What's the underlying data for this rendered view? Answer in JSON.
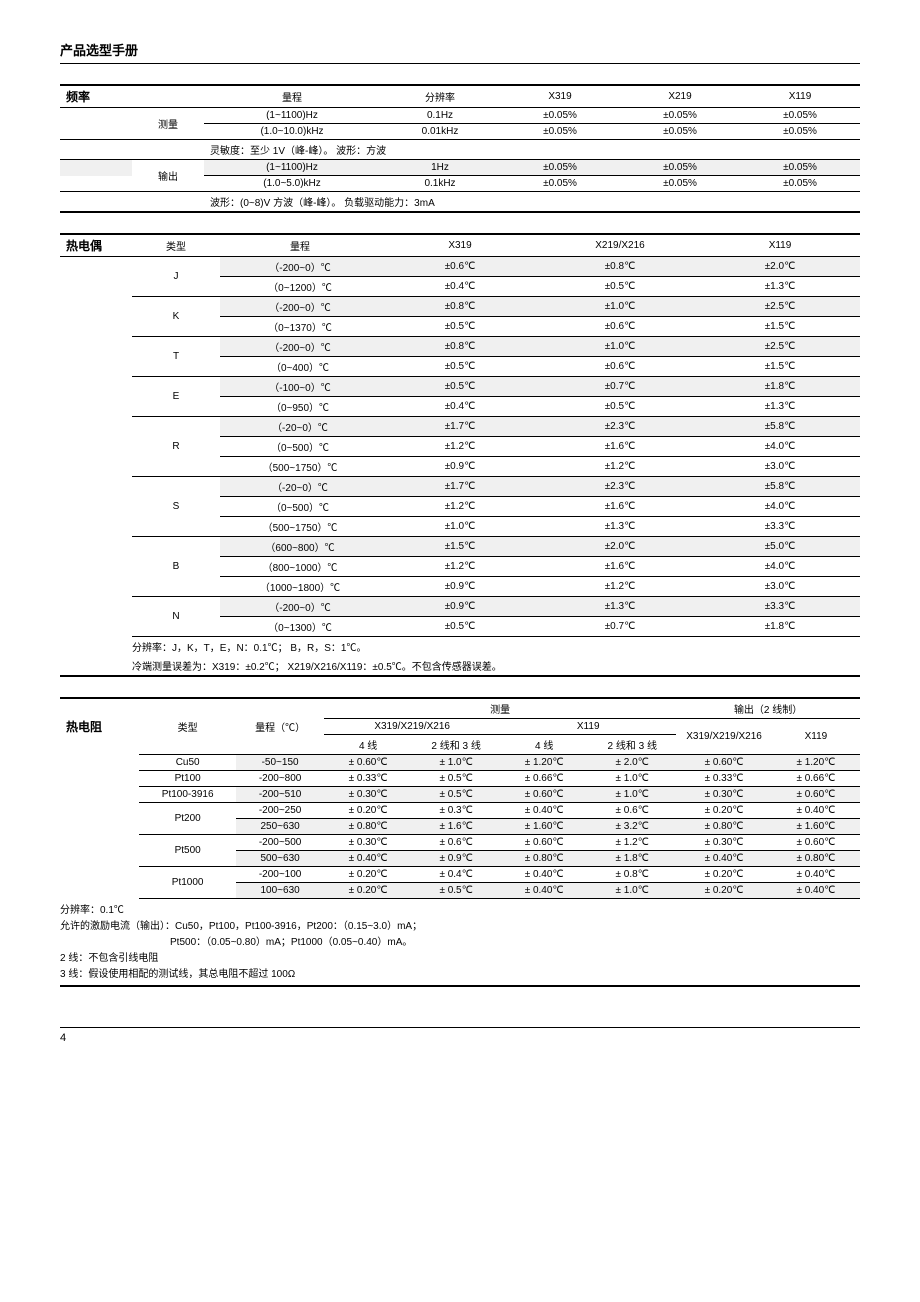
{
  "page_title": "产品选型手册",
  "page_number": "4",
  "freq": {
    "label": "频率",
    "headers": [
      "量程",
      "分辨率",
      "X319",
      "X219",
      "X119"
    ],
    "meas_label": "测量",
    "out_label": "输出",
    "meas_rows": [
      [
        "(1~1100)Hz",
        "0.1Hz",
        "±0.05%",
        "±0.05%",
        "±0.05%"
      ],
      [
        "(1.0~10.0)kHz",
        "0.01kHz",
        "±0.05%",
        "±0.05%",
        "±0.05%"
      ]
    ],
    "meas_note": "灵敏度：至少 1V（峰-峰）。 波形：方波",
    "out_rows": [
      [
        "(1~1100)Hz",
        "1Hz",
        "±0.05%",
        "±0.05%",
        "±0.05%"
      ],
      [
        "(1.0~5.0)kHz",
        "0.1kHz",
        "±0.05%",
        "±0.05%",
        "±0.05%"
      ]
    ],
    "out_note": "波形：(0~8)V 方波（峰-峰）。 负载驱动能力：3mA"
  },
  "tc": {
    "label": "热电偶",
    "headers": [
      "类型",
      "量程",
      "X319",
      "X219/X216",
      "X119"
    ],
    "groups": [
      {
        "type": "J",
        "rows": [
          [
            "（-200~0）℃",
            "±0.6℃",
            "±0.8℃",
            "±2.0℃"
          ],
          [
            "（0~1200）℃",
            "±0.4℃",
            "±0.5℃",
            "±1.3℃"
          ]
        ]
      },
      {
        "type": "K",
        "rows": [
          [
            "（-200~0）℃",
            "±0.8℃",
            "±1.0℃",
            "±2.5℃"
          ],
          [
            "（0~1370）℃",
            "±0.5℃",
            "±0.6℃",
            "±1.5℃"
          ]
        ]
      },
      {
        "type": "T",
        "rows": [
          [
            "（-200~0）℃",
            "±0.8℃",
            "±1.0℃",
            "±2.5℃"
          ],
          [
            "（0~400）℃",
            "±0.5℃",
            "±0.6℃",
            "±1.5℃"
          ]
        ]
      },
      {
        "type": "E",
        "rows": [
          [
            "（-100~0）℃",
            "±0.5℃",
            "±0.7℃",
            "±1.8℃"
          ],
          [
            "（0~950）℃",
            "±0.4℃",
            "±0.5℃",
            "±1.3℃"
          ]
        ]
      },
      {
        "type": "R",
        "rows": [
          [
            "（-20~0）℃",
            "±1.7℃",
            "±2.3℃",
            "±5.8℃"
          ],
          [
            "（0~500）℃",
            "±1.2℃",
            "±1.6℃",
            "±4.0℃"
          ],
          [
            "（500~1750）℃",
            "±0.9℃",
            "±1.2℃",
            "±3.0℃"
          ]
        ]
      },
      {
        "type": "S",
        "rows": [
          [
            "（-20~0）℃",
            "±1.7℃",
            "±2.3℃",
            "±5.8℃"
          ],
          [
            "（0~500）℃",
            "±1.2℃",
            "±1.6℃",
            "±4.0℃"
          ],
          [
            "（500~1750）℃",
            "±1.0℃",
            "±1.3℃",
            "±3.3℃"
          ]
        ]
      },
      {
        "type": "B",
        "rows": [
          [
            "（600~800）℃",
            "±1.5℃",
            "±2.0℃",
            "±5.0℃"
          ],
          [
            "（800~1000）℃",
            "±1.2℃",
            "±1.6℃",
            "±4.0℃"
          ],
          [
            "（1000~1800）℃",
            "±0.9℃",
            "±1.2℃",
            "±3.0℃"
          ]
        ]
      },
      {
        "type": "N",
        "rows": [
          [
            "（-200~0）℃",
            "±0.9℃",
            "±1.3℃",
            "±3.3℃"
          ],
          [
            "（0~1300）℃",
            "±0.5℃",
            "±0.7℃",
            "±1.8℃"
          ]
        ]
      }
    ],
    "note1": "分辨率：J，K，T，E，N：0.1℃； B，R，S：1℃。",
    "note2": "冷端测量误差为：X319：±0.2℃； X219/X216/X119：±0.5℃。不包含传感器误差。"
  },
  "rtd": {
    "label": "热电阻",
    "top_headers": {
      "meas": "测量",
      "out": "输出（2 线制）"
    },
    "sub_headers": {
      "type": "类型",
      "range": "量程（℃）",
      "g1": "X319/X219/X216",
      "g2": "X119",
      "o1": "X319/X219/X216",
      "o2": "X119"
    },
    "wire_headers": {
      "w4": "4 线",
      "w23": "2 线和 3 线"
    },
    "rows": [
      {
        "type": "Cu50",
        "sub": [
          [
            "-50~150",
            "± 0.60℃",
            "± 1.0℃",
            "± 1.20℃",
            "± 2.0℃",
            "± 0.60℃",
            "± 1.20℃"
          ]
        ]
      },
      {
        "type": "Pt100",
        "sub": [
          [
            "-200~800",
            "± 0.33℃",
            "± 0.5℃",
            "± 0.66℃",
            "± 1.0℃",
            "± 0.33℃",
            "± 0.66℃"
          ]
        ]
      },
      {
        "type": "Pt100-3916",
        "sub": [
          [
            "-200~510",
            "± 0.30℃",
            "± 0.5℃",
            "± 0.60℃",
            "± 1.0℃",
            "± 0.30℃",
            "± 0.60℃"
          ]
        ]
      },
      {
        "type": "Pt200",
        "sub": [
          [
            "-200~250",
            "± 0.20℃",
            "± 0.3℃",
            "± 0.40℃",
            "± 0.6℃",
            "± 0.20℃",
            "± 0.40℃"
          ],
          [
            "250~630",
            "± 0.80℃",
            "± 1.6℃",
            "± 1.60℃",
            "± 3.2℃",
            "± 0.80℃",
            "± 1.60℃"
          ]
        ]
      },
      {
        "type": "Pt500",
        "sub": [
          [
            "-200~500",
            "± 0.30℃",
            "± 0.6℃",
            "± 0.60℃",
            "± 1.2℃",
            "± 0.30℃",
            "± 0.60℃"
          ],
          [
            "500~630",
            "± 0.40℃",
            "± 0.9℃",
            "± 0.80℃",
            "± 1.8℃",
            "± 0.40℃",
            "± 0.80℃"
          ]
        ]
      },
      {
        "type": "Pt1000",
        "sub": [
          [
            "-200~100",
            "± 0.20℃",
            "± 0.4℃",
            "± 0.40℃",
            "± 0.8℃",
            "± 0.20℃",
            "± 0.40℃"
          ],
          [
            "100~630",
            "± 0.20℃",
            "± 0.5℃",
            "± 0.40℃",
            "± 1.0℃",
            "± 0.20℃",
            "± 0.40℃"
          ]
        ]
      }
    ],
    "notes": [
      "分辨率：0.1℃",
      "允许的激励电流（输出）：Cu50，Pt100，Pt100-3916，Pt200：（0.15~3.0）mA；",
      "　　　　　　　　　　　Pt500：（0.05~0.80）mA；Pt1000（0.05~0.40）mA。",
      "2 线：不包含引线电阻",
      "3 线：假设使用相配的测试线，其总电阻不超过 100Ω"
    ]
  }
}
